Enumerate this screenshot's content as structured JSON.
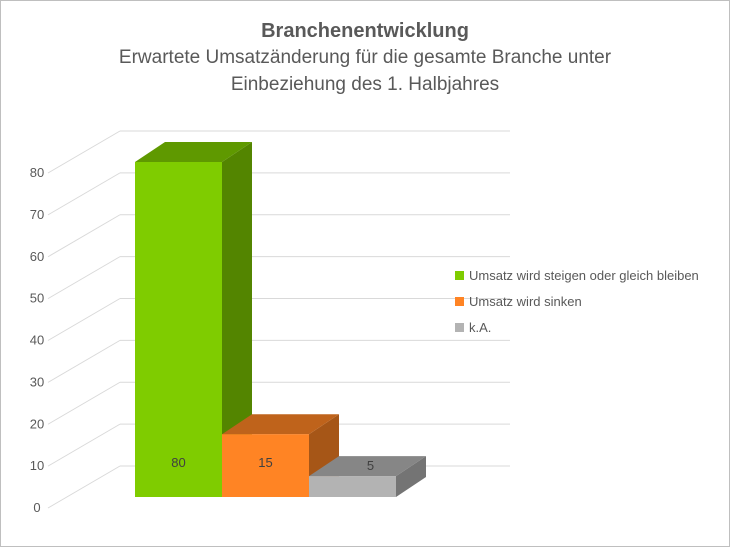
{
  "chart_data": {
    "type": "bar",
    "title": "Branchenentwicklung",
    "subtitle": "Erwartete Umsatzänderung für die gesamte Branche unter Einbeziehung des 1. Halbjahres",
    "categories": [
      "Umsatz wird steigen oder gleich bleiben",
      "Umsatz wird sinken",
      "k.A."
    ],
    "values": [
      80,
      15,
      5
    ],
    "data_labels": [
      "80",
      "15",
      "5"
    ],
    "colors": [
      "#7fcc00",
      "#ff8424",
      "#b3b3b3"
    ],
    "ylim": [
      0,
      80
    ],
    "yticks": [
      "0",
      "10",
      "20",
      "30",
      "40",
      "50",
      "60",
      "70",
      "80"
    ],
    "grid": true,
    "legend_position": "right",
    "three_d": true
  }
}
